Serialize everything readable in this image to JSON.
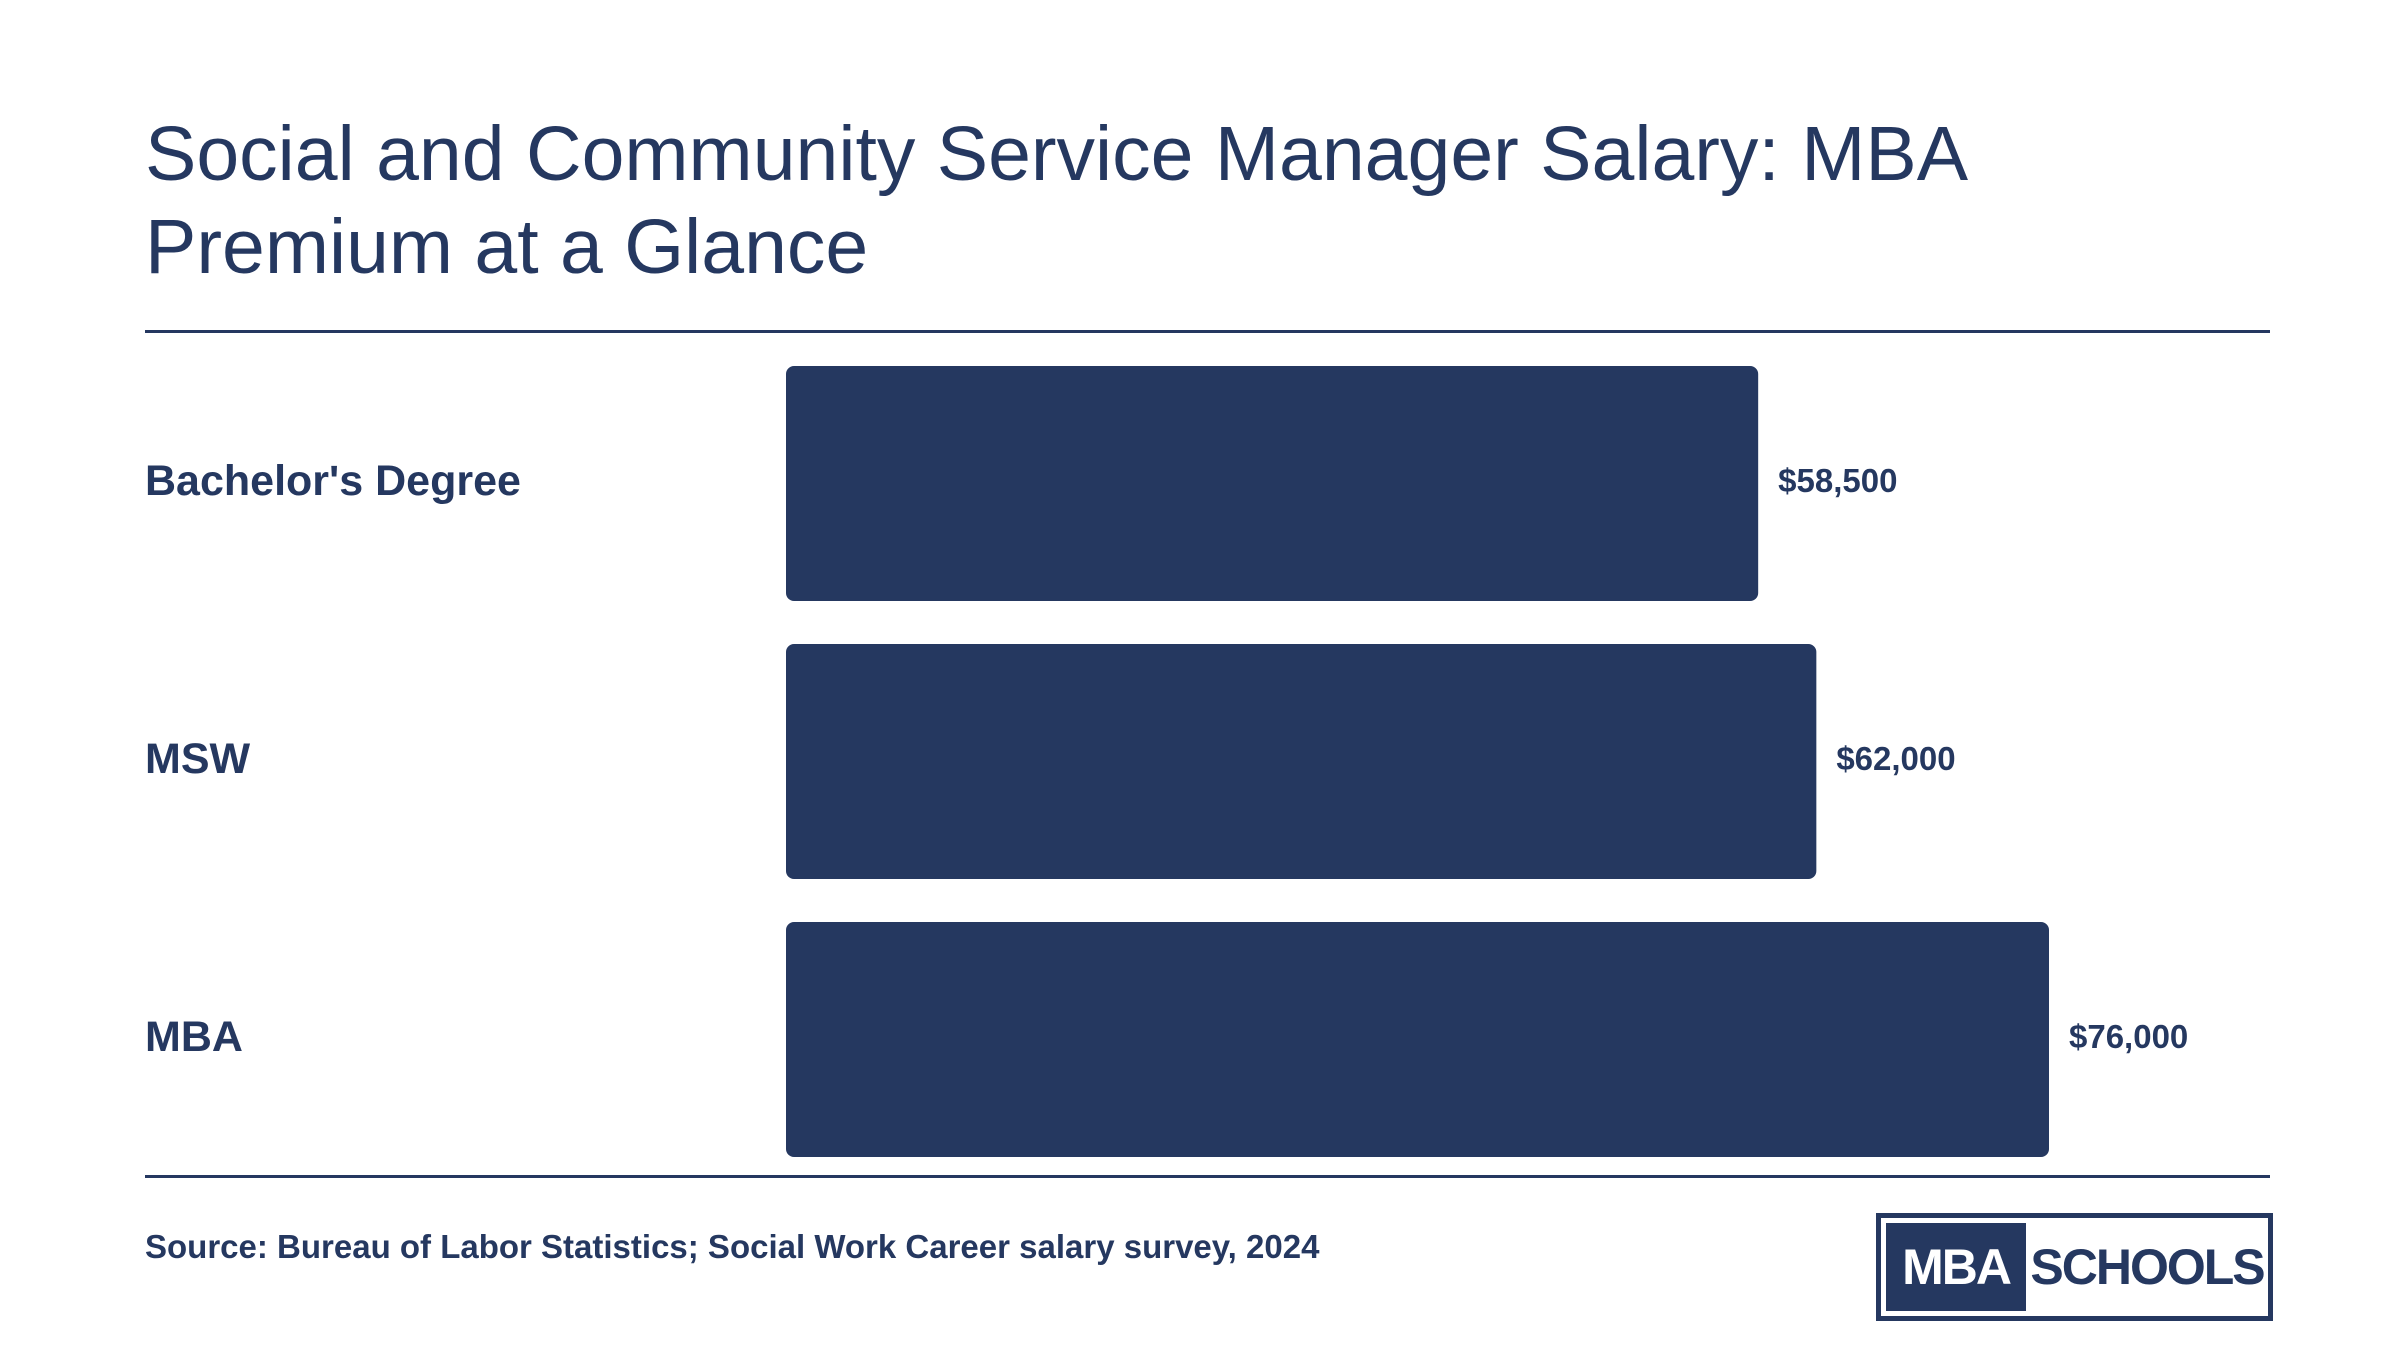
{
  "chart_data": {
    "type": "bar",
    "orientation": "horizontal",
    "title": "Social and Community Service Manager Salary: MBA Premium at a Glance",
    "categories": [
      "Bachelor's Degree",
      "MSW",
      "MBA"
    ],
    "values": [
      58500,
      62000,
      76000
    ],
    "value_labels": [
      "$58,500",
      "$62,000",
      "$76,000"
    ],
    "xlim": [
      0,
      76000
    ],
    "grid": false,
    "legend": "none",
    "colors": {
      "bar": "#253860",
      "text": "#253860"
    }
  },
  "source": "Source: Bureau of Labor Statistics; Social Work Career salary survey, 2024",
  "logo": {
    "left": "MBA",
    "right": "SCHOOLS"
  }
}
